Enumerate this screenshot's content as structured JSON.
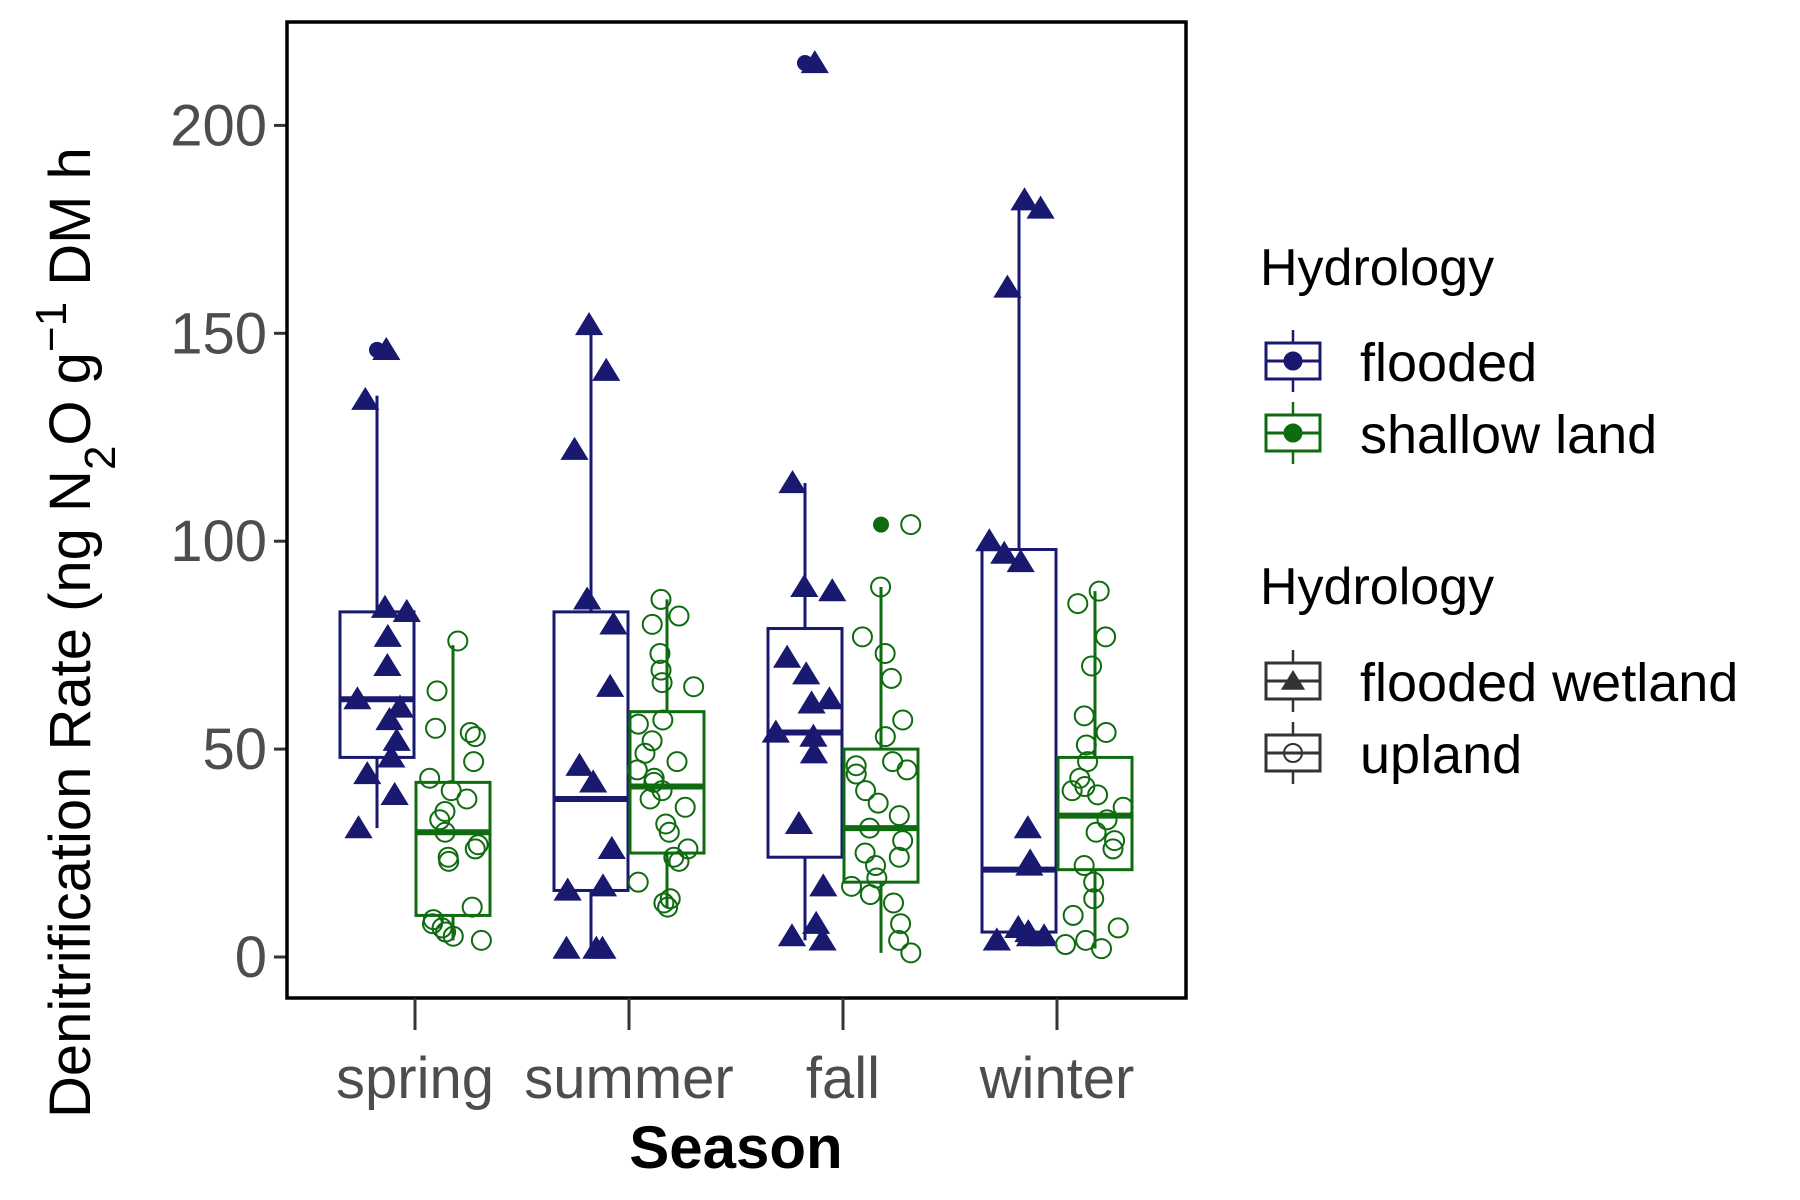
{
  "chart_data": {
    "type": "boxplot",
    "xlabel": "Season",
    "ylabel": {
      "parts": [
        {
          "t": "Denitrification Rate (ng N"
        },
        {
          "t": "2",
          "s": "sub"
        },
        {
          "t": "O g"
        },
        {
          "t": "−1",
          "s": "sup"
        },
        {
          "t": " DM h"
        }
      ]
    },
    "ylim": [
      -9,
      225
    ],
    "yticks": [
      0,
      50,
      100,
      150,
      200
    ],
    "yticklabels": [
      "0",
      "50",
      "100",
      "150",
      "200"
    ],
    "grid": false,
    "legend_placement": "right",
    "categories": [
      "spring",
      "summer",
      "fall",
      "winter"
    ],
    "colors": {
      "flooded": "#191970",
      "shallow land": "#0f6b0f",
      "legend_key": "#333333"
    },
    "legends": [
      {
        "title": "Hydrology",
        "entries": [
          {
            "label": "flooded",
            "color": "#191970",
            "shape": "circle-filled"
          },
          {
            "label": "shallow land",
            "color": "#0f6b0f",
            "shape": "circle-filled"
          }
        ]
      },
      {
        "title": "Hydrology",
        "entries": [
          {
            "label": "flooded wetland",
            "color": "#000000",
            "shape": "triangle"
          },
          {
            "label": "upland",
            "color": "#000000",
            "shape": "circle-open"
          }
        ]
      }
    ],
    "boxes": [
      {
        "category": "spring",
        "group": "flooded",
        "q1": 48,
        "median": 62,
        "q3": 83,
        "wlow": 31,
        "whigh": 135,
        "outliers": [
          146
        ]
      },
      {
        "category": "spring",
        "group": "shallow land",
        "q1": 10,
        "median": 30,
        "q3": 42,
        "wlow": 4,
        "whigh": 75,
        "outliers": []
      },
      {
        "category": "summer",
        "group": "flooded",
        "q1": 16,
        "median": 38,
        "q3": 83,
        "wlow": 1,
        "whigh": 152,
        "outliers": []
      },
      {
        "category": "summer",
        "group": "shallow land",
        "q1": 25,
        "median": 41,
        "q3": 59,
        "wlow": 12,
        "whigh": 86,
        "outliers": []
      },
      {
        "category": "fall",
        "group": "flooded",
        "q1": 24,
        "median": 54,
        "q3": 79,
        "wlow": 4,
        "whigh": 114,
        "outliers": [
          215
        ]
      },
      {
        "category": "fall",
        "group": "shallow land",
        "q1": 18,
        "median": 31,
        "q3": 50,
        "wlow": 1,
        "whigh": 89,
        "outliers": [
          104
        ]
      },
      {
        "category": "winter",
        "group": "flooded",
        "q1": 6,
        "median": 21,
        "q3": 98,
        "wlow": 4,
        "whigh": 181,
        "outliers": []
      },
      {
        "category": "winter",
        "group": "shallow land",
        "q1": 21,
        "median": 34,
        "q3": 48,
        "wlow": 2,
        "whigh": 88,
        "outliers": []
      }
    ],
    "points": [
      {
        "category": "spring",
        "group": "flooded",
        "shape": "triangle",
        "values": [
          146,
          134,
          84,
          83,
          77,
          70,
          62,
          60,
          57,
          52,
          48,
          44,
          39,
          31
        ]
      },
      {
        "category": "spring",
        "group": "shallow land",
        "shape": "circle-open",
        "values": [
          76,
          64,
          55,
          54,
          53,
          47,
          43,
          40,
          38,
          35,
          33,
          30,
          27,
          26,
          24,
          23,
          12,
          9,
          8,
          7,
          6,
          5,
          4
        ]
      },
      {
        "category": "summer",
        "group": "flooded",
        "shape": "triangle",
        "values": [
          152,
          141,
          122,
          86,
          80,
          65,
          46,
          42,
          26,
          17,
          16,
          2,
          2,
          2
        ]
      },
      {
        "category": "summer",
        "group": "shallow land",
        "shape": "circle-open",
        "values": [
          86,
          82,
          80,
          73,
          69,
          66,
          65,
          57,
          56,
          52,
          49,
          47,
          45,
          43,
          42,
          40,
          38,
          36,
          32,
          30,
          26,
          24,
          23,
          18,
          14,
          13,
          12
        ]
      },
      {
        "category": "fall",
        "group": "flooded",
        "shape": "triangle",
        "values": [
          215,
          114,
          89,
          88,
          72,
          68,
          62,
          61,
          54,
          53,
          49,
          32,
          17,
          8,
          5,
          4
        ]
      },
      {
        "category": "fall",
        "group": "shallow land",
        "shape": "circle-open",
        "values": [
          104,
          89,
          77,
          73,
          67,
          57,
          53,
          47,
          46,
          45,
          44,
          40,
          37,
          34,
          31,
          28,
          25,
          24,
          22,
          19,
          17,
          15,
          13,
          8,
          4,
          1
        ]
      },
      {
        "category": "winter",
        "group": "flooded",
        "shape": "triangle",
        "values": [
          182,
          180,
          161,
          100,
          97,
          95,
          31,
          23,
          22,
          7,
          6,
          5,
          5,
          4
        ]
      },
      {
        "category": "winter",
        "group": "shallow land",
        "shape": "circle-open",
        "values": [
          88,
          85,
          77,
          70,
          58,
          54,
          51,
          47,
          43,
          41,
          40,
          39,
          36,
          33,
          30,
          28,
          26,
          22,
          18,
          14,
          10,
          7,
          4,
          3,
          2
        ]
      }
    ]
  }
}
